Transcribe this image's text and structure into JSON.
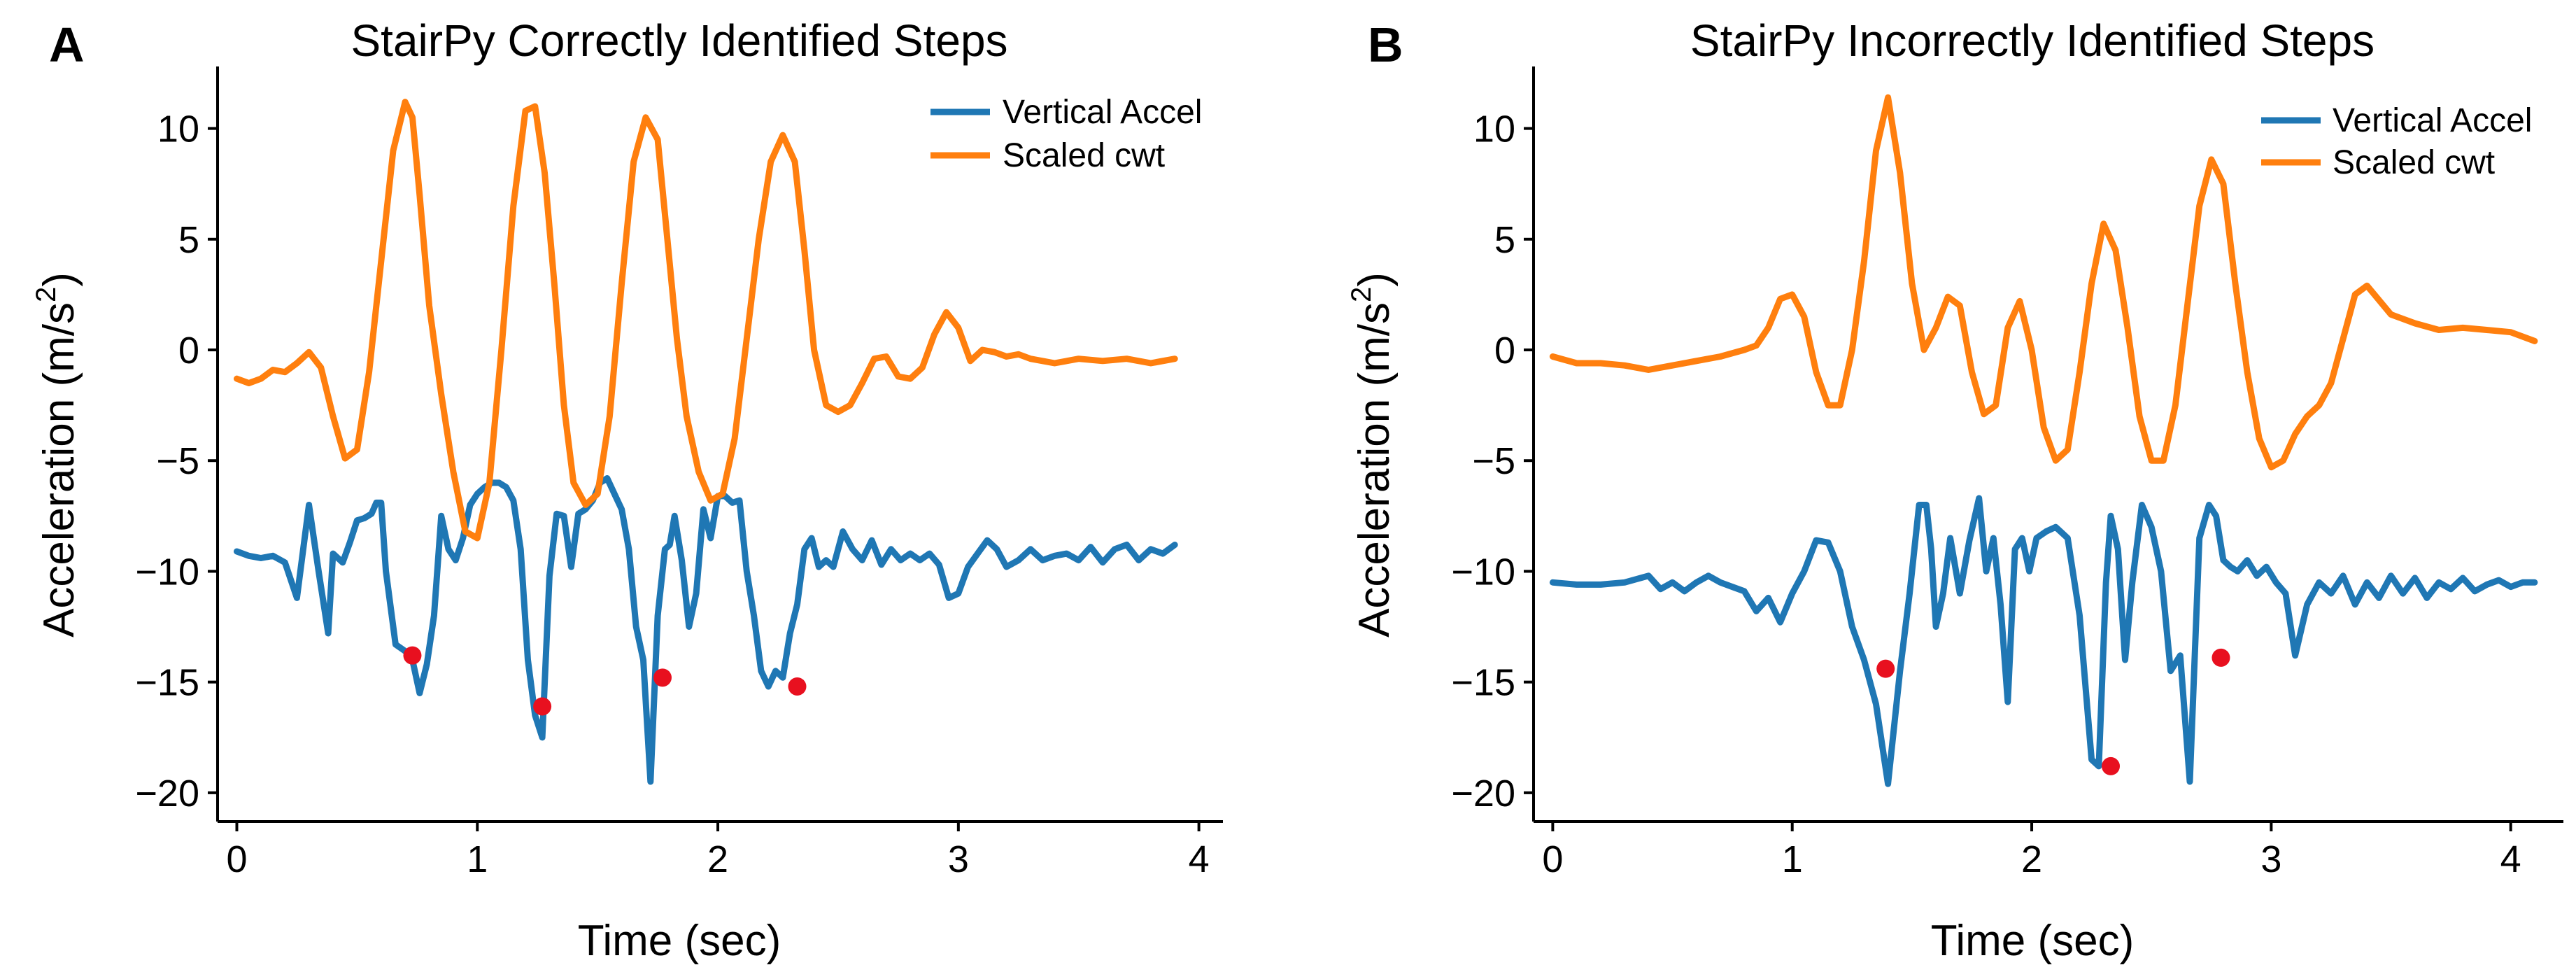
{
  "chart_data": [
    {
      "panel": "A",
      "type": "line",
      "title": "StairPy Correctly Identified Steps",
      "xlabel": "Time (sec)",
      "ylabel": "Acceleration (m/s",
      "ylabel_sup": "2",
      "ylabel_end": ")",
      "xlim": [
        -0.08,
        4.1
      ],
      "ylim": [
        -21.3,
        12.8
      ],
      "xticks": [
        0,
        1,
        2,
        3,
        4
      ],
      "xtick_labels": [
        "0",
        "1",
        "2",
        "3",
        "4"
      ],
      "yticks": [
        10,
        5,
        0,
        -5,
        -10,
        -15,
        -20
      ],
      "ytick_labels": [
        "10",
        "5",
        "0",
        "−5",
        "−10",
        "−15",
        "−20"
      ],
      "legend": {
        "position": "top-right",
        "entries": [
          "Vertical Accel",
          "Scaled cwt"
        ]
      },
      "series": [
        {
          "name": "Vertical Accel",
          "color": "#1f77b4",
          "x": [
            0.0,
            0.05,
            0.1,
            0.15,
            0.2,
            0.25,
            0.3,
            0.34,
            0.38,
            0.4,
            0.44,
            0.47,
            0.5,
            0.53,
            0.56,
            0.58,
            0.6,
            0.62,
            0.66,
            0.7,
            0.73,
            0.76,
            0.79,
            0.82,
            0.85,
            0.88,
            0.91,
            0.94,
            0.97,
            1.0,
            1.03,
            1.06,
            1.09,
            1.12,
            1.15,
            1.18,
            1.21,
            1.24,
            1.27,
            1.3,
            1.33,
            1.36,
            1.39,
            1.42,
            1.45,
            1.48,
            1.51,
            1.54,
            1.57,
            1.6,
            1.63,
            1.66,
            1.69,
            1.72,
            1.75,
            1.78,
            1.8,
            1.82,
            1.85,
            1.88,
            1.91,
            1.94,
            1.97,
            2.0,
            2.03,
            2.06,
            2.09,
            2.12,
            2.15,
            2.18,
            2.21,
            2.24,
            2.27,
            2.3,
            2.33,
            2.36,
            2.39,
            2.42,
            2.45,
            2.48,
            2.52,
            2.56,
            2.6,
            2.64,
            2.68,
            2.72,
            2.76,
            2.8,
            2.84,
            2.88,
            2.92,
            2.96,
            3.0,
            3.04,
            3.08,
            3.12,
            3.16,
            3.2,
            3.25,
            3.3,
            3.35,
            3.4,
            3.45,
            3.5,
            3.55,
            3.6,
            3.65,
            3.7,
            3.75,
            3.8,
            3.85,
            3.9
          ],
          "y": [
            -9.1,
            -9.3,
            -9.4,
            -9.3,
            -9.6,
            -11.2,
            -7.0,
            -10.0,
            -12.8,
            -9.2,
            -9.6,
            -8.7,
            -7.7,
            -7.6,
            -7.4,
            -6.9,
            -6.9,
            -10.0,
            -13.3,
            -13.6,
            -14.0,
            -15.5,
            -14.2,
            -12.0,
            -7.5,
            -9.0,
            -9.5,
            -8.5,
            -7.0,
            -6.5,
            -6.2,
            -6.0,
            -6.0,
            -6.2,
            -6.8,
            -9.0,
            -14.0,
            -16.5,
            -17.5,
            -10.2,
            -7.4,
            -7.5,
            -9.8,
            -7.4,
            -7.2,
            -6.8,
            -6.0,
            -5.8,
            -6.5,
            -7.2,
            -9.0,
            -12.5,
            -14.0,
            -19.5,
            -12.0,
            -9.0,
            -8.8,
            -7.5,
            -9.5,
            -12.5,
            -11.0,
            -7.2,
            -8.5,
            -6.6,
            -6.6,
            -6.9,
            -6.8,
            -10.0,
            -12.0,
            -14.5,
            -15.2,
            -14.5,
            -14.8,
            -12.8,
            -11.5,
            -9.0,
            -8.5,
            -9.8,
            -9.5,
            -9.8,
            -8.2,
            -9.0,
            -9.5,
            -8.6,
            -9.7,
            -9.0,
            -9.5,
            -9.2,
            -9.5,
            -9.2,
            -9.7,
            -11.2,
            -11.0,
            -9.8,
            -9.2,
            -8.6,
            -9.0,
            -9.8,
            -9.5,
            -9.0,
            -9.5,
            -9.3,
            -9.2,
            -9.5,
            -8.9,
            -9.6,
            -9.0,
            -8.8,
            -9.5,
            -9.0,
            -9.2,
            -8.8
          ]
        },
        {
          "name": "Scaled cwt",
          "color": "#ff7f0e",
          "x": [
            0.0,
            0.05,
            0.1,
            0.15,
            0.2,
            0.25,
            0.3,
            0.35,
            0.4,
            0.45,
            0.5,
            0.55,
            0.6,
            0.65,
            0.7,
            0.73,
            0.76,
            0.8,
            0.85,
            0.9,
            0.95,
            1.0,
            1.05,
            1.1,
            1.15,
            1.2,
            1.24,
            1.28,
            1.32,
            1.36,
            1.4,
            1.45,
            1.5,
            1.55,
            1.6,
            1.65,
            1.7,
            1.75,
            1.79,
            1.83,
            1.87,
            1.92,
            1.97,
            2.02,
            2.07,
            2.12,
            2.17,
            2.22,
            2.27,
            2.32,
            2.36,
            2.4,
            2.45,
            2.5,
            2.55,
            2.6,
            2.65,
            2.7,
            2.75,
            2.8,
            2.85,
            2.9,
            2.95,
            3.0,
            3.05,
            3.1,
            3.15,
            3.2,
            3.25,
            3.3,
            3.4,
            3.5,
            3.6,
            3.7,
            3.8,
            3.9
          ],
          "y": [
            -1.3,
            -1.5,
            -1.3,
            -0.9,
            -1.0,
            -0.6,
            -0.1,
            -0.8,
            -3.0,
            -4.9,
            -4.5,
            -1.0,
            4.0,
            9.0,
            11.2,
            10.5,
            7.0,
            2.0,
            -2.0,
            -5.5,
            -8.2,
            -8.5,
            -6.0,
            0.0,
            6.5,
            10.8,
            11.0,
            8.0,
            3.0,
            -2.5,
            -6.0,
            -7.0,
            -6.5,
            -3.0,
            3.0,
            8.5,
            10.5,
            9.5,
            5.0,
            0.5,
            -3.0,
            -5.5,
            -6.8,
            -6.5,
            -4.0,
            0.5,
            5.0,
            8.5,
            9.7,
            8.5,
            4.5,
            0.0,
            -2.5,
            -2.8,
            -2.5,
            -1.5,
            -0.4,
            -0.3,
            -1.2,
            -1.3,
            -0.8,
            0.7,
            1.7,
            1.0,
            -0.5,
            0.0,
            -0.1,
            -0.3,
            -0.2,
            -0.4,
            -0.6,
            -0.4,
            -0.5,
            -0.4,
            -0.6,
            -0.4
          ]
        }
      ],
      "markers": {
        "name": "Identified steps",
        "color": "#e8101f",
        "x": [
          0.73,
          1.27,
          1.77,
          2.33
        ],
        "y": [
          -13.8,
          -16.1,
          -14.8,
          -15.2
        ]
      }
    },
    {
      "panel": "B",
      "type": "line",
      "title": "StairPy Incorrectly Identified Steps",
      "xlabel": "Time (sec)",
      "ylabel": "Acceleration (m/s",
      "ylabel_sup": "2",
      "ylabel_end": ")",
      "xlim": [
        -0.08,
        4.22
      ],
      "ylim": [
        -21.3,
        12.8
      ],
      "xticks": [
        0,
        1,
        2,
        3,
        4
      ],
      "xtick_labels": [
        "0",
        "1",
        "2",
        "3",
        "4"
      ],
      "yticks": [
        10,
        5,
        0,
        -5,
        -10,
        -15,
        -20
      ],
      "ytick_labels": [
        "10",
        "5",
        "0",
        "−5",
        "−10",
        "−15",
        "−20"
      ],
      "legend": {
        "position": "top-right",
        "entries": [
          "Vertical Accel",
          "Scaled cwt"
        ]
      },
      "series": [
        {
          "name": "Vertical Accel",
          "color": "#1f77b4",
          "x": [
            0.0,
            0.1,
            0.2,
            0.3,
            0.4,
            0.45,
            0.5,
            0.55,
            0.6,
            0.65,
            0.7,
            0.75,
            0.8,
            0.85,
            0.9,
            0.95,
            1.0,
            1.05,
            1.1,
            1.15,
            1.2,
            1.25,
            1.3,
            1.35,
            1.4,
            1.45,
            1.49,
            1.53,
            1.56,
            1.58,
            1.6,
            1.63,
            1.66,
            1.7,
            1.74,
            1.78,
            1.81,
            1.84,
            1.87,
            1.9,
            1.93,
            1.96,
            1.99,
            2.02,
            2.06,
            2.1,
            2.15,
            2.2,
            2.25,
            2.28,
            2.31,
            2.33,
            2.36,
            2.39,
            2.42,
            2.46,
            2.5,
            2.54,
            2.58,
            2.62,
            2.66,
            2.7,
            2.74,
            2.77,
            2.8,
            2.83,
            2.86,
            2.9,
            2.94,
            2.98,
            3.02,
            3.06,
            3.1,
            3.15,
            3.2,
            3.25,
            3.3,
            3.35,
            3.4,
            3.45,
            3.5,
            3.55,
            3.6,
            3.65,
            3.7,
            3.75,
            3.8,
            3.85,
            3.9,
            3.95,
            4.0,
            4.05,
            4.1
          ],
          "y": [
            -10.5,
            -10.6,
            -10.6,
            -10.5,
            -10.2,
            -10.8,
            -10.5,
            -10.9,
            -10.5,
            -10.2,
            -10.5,
            -10.7,
            -10.9,
            -11.8,
            -11.2,
            -12.3,
            -11.0,
            -10.0,
            -8.6,
            -8.7,
            -10.0,
            -12.5,
            -14.0,
            -16.0,
            -19.6,
            -14.5,
            -11.0,
            -7.0,
            -7.0,
            -9.0,
            -12.5,
            -11.0,
            -8.5,
            -11.0,
            -8.6,
            -6.7,
            -10.0,
            -8.5,
            -11.5,
            -15.9,
            -9.0,
            -8.5,
            -10.0,
            -8.5,
            -8.2,
            -8.0,
            -8.5,
            -12.0,
            -18.5,
            -18.8,
            -10.5,
            -7.5,
            -9.0,
            -14.0,
            -10.5,
            -7.0,
            -8.0,
            -10.0,
            -14.5,
            -13.8,
            -19.5,
            -8.5,
            -7.0,
            -7.5,
            -9.5,
            -9.8,
            -10.0,
            -9.5,
            -10.2,
            -9.8,
            -10.5,
            -11.0,
            -13.8,
            -11.5,
            -10.5,
            -11.0,
            -10.2,
            -11.5,
            -10.5,
            -11.2,
            -10.2,
            -11.0,
            -10.3,
            -11.2,
            -10.5,
            -10.8,
            -10.3,
            -10.9,
            -10.6,
            -10.4,
            -10.7,
            -10.5,
            -10.5
          ]
        },
        {
          "name": "Scaled cwt",
          "color": "#ff7f0e",
          "x": [
            0.0,
            0.1,
            0.2,
            0.3,
            0.4,
            0.5,
            0.6,
            0.7,
            0.8,
            0.85,
            0.9,
            0.95,
            1.0,
            1.05,
            1.1,
            1.15,
            1.2,
            1.25,
            1.3,
            1.35,
            1.4,
            1.45,
            1.5,
            1.55,
            1.6,
            1.65,
            1.7,
            1.75,
            1.8,
            1.85,
            1.9,
            1.95,
            2.0,
            2.05,
            2.1,
            2.15,
            2.2,
            2.25,
            2.3,
            2.35,
            2.4,
            2.45,
            2.5,
            2.55,
            2.6,
            2.65,
            2.7,
            2.75,
            2.8,
            2.85,
            2.9,
            2.95,
            3.0,
            3.05,
            3.1,
            3.15,
            3.2,
            3.25,
            3.3,
            3.35,
            3.4,
            3.5,
            3.6,
            3.7,
            3.8,
            3.9,
            4.0,
            4.1
          ],
          "y": [
            -0.3,
            -0.6,
            -0.6,
            -0.7,
            -0.9,
            -0.7,
            -0.5,
            -0.3,
            0.0,
            0.2,
            1.0,
            2.3,
            2.5,
            1.5,
            -1.0,
            -2.5,
            -2.5,
            0.0,
            4.0,
            9.0,
            11.4,
            8.0,
            3.0,
            0.0,
            1.0,
            2.4,
            2.0,
            -1.0,
            -2.9,
            -2.5,
            1.0,
            2.2,
            0.0,
            -3.5,
            -5.0,
            -4.5,
            -1.0,
            3.0,
            5.7,
            4.5,
            1.0,
            -3.0,
            -5.0,
            -5.0,
            -2.5,
            2.0,
            6.5,
            8.6,
            7.5,
            3.0,
            -1.0,
            -4.0,
            -5.3,
            -5.0,
            -3.8,
            -3.0,
            -2.5,
            -1.5,
            0.5,
            2.5,
            2.9,
            1.6,
            1.2,
            0.9,
            1.0,
            0.9,
            0.8,
            0.4
          ]
        }
      ],
      "markers": {
        "name": "Identified steps",
        "color": "#e8101f",
        "x": [
          1.39,
          2.33,
          2.79
        ],
        "y": [
          -14.4,
          -18.8,
          -13.9
        ]
      }
    }
  ]
}
